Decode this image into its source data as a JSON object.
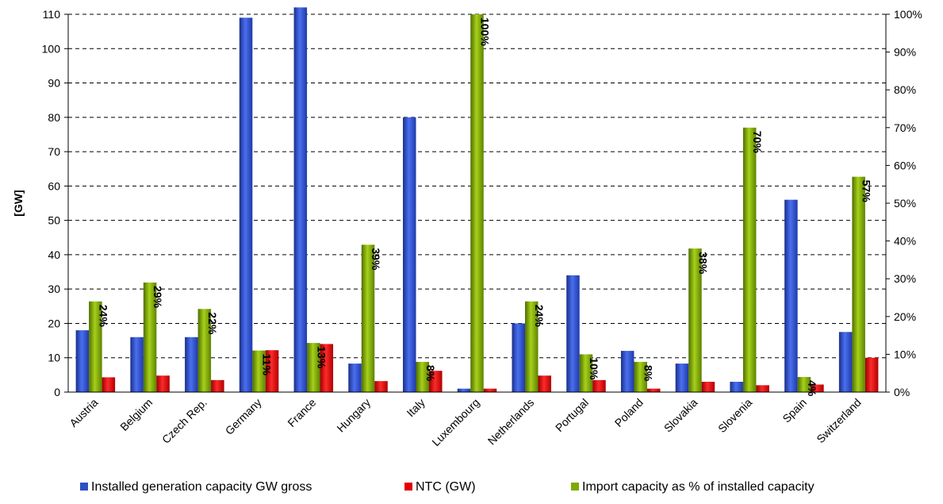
{
  "chart_data": {
    "type": "bar",
    "ylabel": "[GW]",
    "ylim": [
      0,
      110
    ],
    "yticks": [
      0,
      10,
      20,
      30,
      40,
      50,
      60,
      70,
      80,
      90,
      100,
      110
    ],
    "y2lim": [
      0,
      100
    ],
    "y2ticks": [
      "0%",
      "10%",
      "20%",
      "30%",
      "40%",
      "50%",
      "60%",
      "70%",
      "80%",
      "90%",
      "100%"
    ],
    "grid": "horizontal dashed",
    "legend_position": "bottom",
    "categories": [
      "Austria",
      "Belgium",
      "Czech Rep.",
      "Germany",
      "France",
      "Hungary",
      "Italy",
      "Luxembourg",
      "Netherlands",
      "Portugal",
      "Poland",
      "Slovakia",
      "Slovenia",
      "Spain",
      "Switzerland"
    ],
    "series": [
      {
        "name": "Installed generation capacity GW gross",
        "axis": "left",
        "color": "#2b4fc4",
        "values": [
          18,
          16,
          16,
          109,
          112,
          8.3,
          80,
          1.0,
          20,
          34,
          12,
          8.3,
          3,
          56,
          17.5
        ]
      },
      {
        "name": "Import capacity as % of installed capacity",
        "axis": "right",
        "color": "#7fa800",
        "values": [
          24,
          29,
          22,
          11,
          13,
          39,
          8,
          100,
          24,
          10,
          8,
          38,
          70,
          4,
          57
        ],
        "labels": [
          "24%",
          "29%",
          "22%",
          "11%",
          "13%",
          "39%",
          "8%",
          "100%",
          "24%",
          "10%",
          "8%",
          "38%",
          "70%",
          "4%",
          "57%"
        ]
      },
      {
        "name": "NTC (GW)",
        "axis": "left",
        "color": "#e00000",
        "values": [
          4.3,
          4.8,
          3.5,
          12.2,
          14,
          3.2,
          6.2,
          1.0,
          4.8,
          3.5,
          1.0,
          3.0,
          2.0,
          2.2,
          10
        ]
      }
    ],
    "legend": [
      {
        "label": "Installed generation capacity GW gross",
        "color": "#2b4fc4"
      },
      {
        "label": "NTC (GW)",
        "color": "#e00000"
      },
      {
        "label": "Import capacity as % of installed capacity",
        "color": "#7fa800"
      }
    ]
  }
}
